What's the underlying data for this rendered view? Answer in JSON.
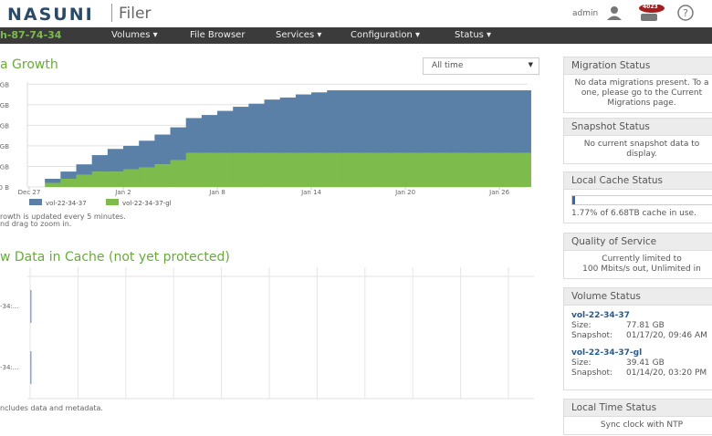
{
  "header": {
    "logo": "NASUNI",
    "product": "Filer",
    "user": "admin",
    "badge": "4023"
  },
  "nav": {
    "hostname": "h-87-74-34",
    "items": [
      "Volumes",
      "File Browser",
      "Services",
      "Configuration",
      "Status"
    ]
  },
  "growth": {
    "title": "a Growth",
    "range_select": "All time",
    "chart_data": {
      "type": "stacked-area",
      "x": [
        "Dec 28",
        "Dec 29",
        "Dec 30",
        "Dec 31",
        "Jan 1",
        "Jan 2",
        "Jan 3",
        "Jan 4",
        "Jan 5",
        "Jan 6",
        "Jan 7",
        "Jan 8",
        "Jan 9",
        "Jan 10",
        "Jan 11",
        "Jan 12",
        "Jan 13",
        "Jan 14",
        "Jan 15",
        "Jan 16",
        "Jan 17",
        "Jan 18",
        "Jan 19",
        "Jan 20",
        "Jan 21",
        "Jan 22",
        "Jan 23",
        "Jan 24",
        "Jan 25",
        "Jan 26",
        "Jan 27"
      ],
      "xticks": [
        "Dec 27",
        "Jan 2",
        "Jan 8",
        "Jan 14",
        "Jan 20",
        "Jan 26"
      ],
      "ylim": [
        0,
        5.1
      ],
      "yticks": [
        {
          "value": 0,
          "label": "0 B"
        },
        {
          "value": 1,
          "label": "GB"
        },
        {
          "value": 2,
          "label": "GB"
        },
        {
          "value": 3,
          "label": "GB"
        },
        {
          "value": 4,
          "label": "GB"
        },
        {
          "value": 5,
          "label": "GB"
        }
      ],
      "grid": true,
      "series": [
        {
          "name": "vol-22-34-37",
          "color": "#5b80a8",
          "values": [
            0.2,
            0.35,
            0.5,
            0.8,
            1.1,
            1.15,
            1.3,
            1.45,
            1.6,
            1.7,
            1.85,
            2.05,
            2.25,
            2.4,
            2.6,
            2.7,
            2.85,
            2.95,
            3.05,
            3.05,
            3.05,
            3.05,
            3.05,
            3.05,
            3.05,
            3.05,
            3.05,
            3.05,
            3.05,
            3.05,
            3.05
          ]
        },
        {
          "name": "vol-22-34-37-gl",
          "color": "#7cbb4c",
          "values": [
            0.2,
            0.4,
            0.6,
            0.75,
            0.75,
            0.85,
            0.95,
            1.1,
            1.3,
            1.65,
            1.65,
            1.65,
            1.65,
            1.65,
            1.65,
            1.65,
            1.65,
            1.65,
            1.65,
            1.65,
            1.65,
            1.65,
            1.65,
            1.65,
            1.65,
            1.65,
            1.65,
            1.65,
            1.65,
            1.65,
            1.65
          ]
        }
      ]
    },
    "notes": [
      "rowth is updated every 5 minutes.",
      "nd drag to zoom in."
    ]
  },
  "cache": {
    "title": "w Data in Cache (not yet protected)",
    "row_labels": [
      "-34:...",
      "-34:..."
    ],
    "note": "ncludes data and metadata."
  },
  "sidebar": {
    "migration": {
      "title": "Migration Status",
      "lines": [
        "No data migrations present. To a",
        "one, please go to the Current",
        "Migrations page."
      ]
    },
    "snapshot": {
      "title": "Snapshot Status",
      "lines": [
        "No current snapshot data to",
        "display."
      ]
    },
    "cache": {
      "title": "Local Cache Status",
      "used_percent": 1.77,
      "text": "1.77% of 6.68TB cache in use."
    },
    "qos": {
      "title": "Quality of Service",
      "lines": [
        "Currently limited to",
        "100 Mbits/s out, Unlimited in"
      ]
    },
    "volumes": {
      "title": "Volume Status",
      "size_label": "Size:",
      "snapshot_label": "Snapshot:",
      "items": [
        {
          "name": "vol-22-34-37",
          "size": "77.81 GB",
          "snapshot": "01/17/20, 09:46 AM"
        },
        {
          "name": "vol-22-34-37-gl",
          "size": "39.41 GB",
          "snapshot": "01/14/20, 03:20 PM"
        }
      ]
    },
    "time": {
      "title": "Local Time Status",
      "lines": [
        "Sync clock with NTP"
      ]
    }
  }
}
